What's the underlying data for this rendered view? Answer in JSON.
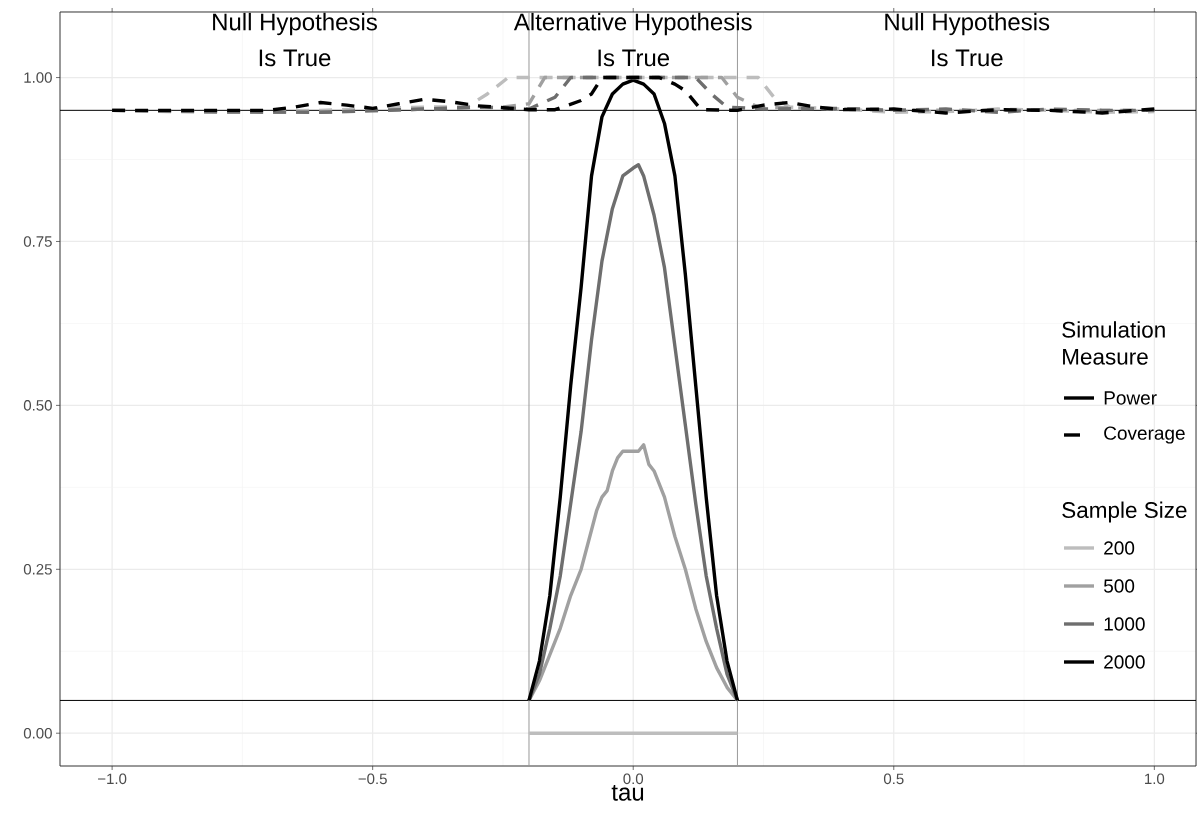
{
  "chart_data": {
    "type": "line",
    "xlabel": "tau",
    "legend_title": "Sample Size",
    "legend": "right",
    "grid": true,
    "xlim": [
      -1.1,
      1.08
    ],
    "ylim": [
      -0.05,
      1.1
    ],
    "xticks": [
      {
        "value": -1.0,
        "label": "−1.0"
      },
      {
        "value": -0.5,
        "label": "−0.5"
      },
      {
        "value": 0.0,
        "label": "0.0"
      },
      {
        "value": 0.5,
        "label": "0.5"
      },
      {
        "value": 1.0,
        "label": "1.0"
      }
    ],
    "yticks": [
      {
        "value": 0.0,
        "label": "0.00"
      },
      {
        "value": 0.25,
        "label": "0.25"
      },
      {
        "value": 0.5,
        "label": "0.50"
      },
      {
        "value": 0.75,
        "label": "0.75"
      },
      {
        "value": 1.0,
        "label": "1.00"
      }
    ],
    "ref_lines": [
      {
        "axis": "y",
        "value": 0.95,
        "color": "#000000"
      },
      {
        "axis": "y",
        "value": 0.05,
        "color": "#000000"
      },
      {
        "axis": "x",
        "value": -0.2,
        "color": "#999999"
      },
      {
        "axis": "x",
        "value": 0.2,
        "color": "#999999"
      }
    ],
    "annotations": [
      "Null Hypothesis",
      "Is True",
      "Alternative Hypothesis",
      "Is True",
      "Null Hypothesis",
      "Is True",
      "Simulation Measure",
      "Power",
      "Coverage"
    ],
    "series": [
      {
        "name": "200",
        "line_style": "solid",
        "color": "#bdbdbd",
        "x": [
          -0.2,
          -0.1,
          0,
          0.1,
          0.2
        ],
        "values": [
          0,
          0,
          0,
          0,
          0
        ]
      },
      {
        "name": "500",
        "line_style": "solid",
        "color": "#a0a0a0",
        "x": [
          -0.2,
          -0.18,
          -0.16,
          -0.14,
          -0.12,
          -0.1,
          -0.08,
          -0.07,
          -0.06,
          -0.05,
          -0.04,
          -0.03,
          -0.02,
          0,
          0.01,
          0.02,
          0.03,
          0.04,
          0.06,
          0.08,
          0.1,
          0.12,
          0.14,
          0.16,
          0.18,
          0.2
        ],
        "values": [
          0.05,
          0.08,
          0.12,
          0.16,
          0.21,
          0.25,
          0.31,
          0.34,
          0.36,
          0.37,
          0.4,
          0.42,
          0.43,
          0.43,
          0.43,
          0.44,
          0.41,
          0.4,
          0.36,
          0.3,
          0.25,
          0.19,
          0.14,
          0.1,
          0.07,
          0.05
        ]
      },
      {
        "name": "1000",
        "line_style": "solid",
        "color": "#6e6e6e",
        "x": [
          -0.2,
          -0.18,
          -0.16,
          -0.14,
          -0.12,
          -0.1,
          -0.08,
          -0.06,
          -0.04,
          -0.02,
          0,
          0.01,
          0.02,
          0.04,
          0.06,
          0.08,
          0.1,
          0.12,
          0.14,
          0.16,
          0.18,
          0.2
        ],
        "values": [
          0.05,
          0.09,
          0.16,
          0.24,
          0.35,
          0.46,
          0.6,
          0.72,
          0.8,
          0.85,
          0.862,
          0.867,
          0.85,
          0.79,
          0.71,
          0.59,
          0.47,
          0.35,
          0.24,
          0.16,
          0.09,
          0.05
        ]
      },
      {
        "name": "2000",
        "line_style": "solid",
        "color": "#000000",
        "x": [
          -0.2,
          -0.18,
          -0.16,
          -0.14,
          -0.12,
          -0.1,
          -0.08,
          -0.06,
          -0.04,
          -0.02,
          0,
          0.02,
          0.04,
          0.06,
          0.08,
          0.1,
          0.12,
          0.14,
          0.16,
          0.18,
          0.2
        ],
        "values": [
          0.05,
          0.11,
          0.21,
          0.36,
          0.53,
          0.68,
          0.85,
          0.94,
          0.975,
          0.99,
          0.996,
          0.99,
          0.975,
          0.93,
          0.85,
          0.7,
          0.53,
          0.36,
          0.21,
          0.11,
          0.05
        ]
      },
      {
        "line_style": "dashed",
        "color": "#bdbdbd",
        "x": [
          -1,
          -0.8,
          -0.6,
          -0.4,
          -0.32,
          -0.28,
          -0.24,
          0.24,
          0.27,
          0.3,
          0.4,
          0.5,
          0.6,
          0.7,
          0.8,
          0.9,
          1.0
        ],
        "values": [
          0.95,
          0.948,
          0.95,
          0.955,
          0.955,
          0.975,
          1.0,
          1.0,
          0.97,
          0.955,
          0.952,
          0.947,
          0.948,
          0.952,
          0.95,
          0.947,
          0.948
        ]
      },
      {
        "line_style": "dashed",
        "color": "#a0a0a0",
        "x": [
          -1,
          -0.8,
          -0.6,
          -0.4,
          -0.25,
          -0.2,
          -0.17,
          0.17,
          0.2,
          0.24,
          0.4,
          0.6,
          0.8,
          1.0
        ],
        "values": [
          0.95,
          0.947,
          0.947,
          0.952,
          0.955,
          0.96,
          1.0,
          1.0,
          0.97,
          0.955,
          0.952,
          0.95,
          0.95,
          0.95
        ]
      },
      {
        "line_style": "dashed",
        "color": "#6e6e6e",
        "x": [
          -1,
          -0.8,
          -0.6,
          -0.4,
          -0.3,
          -0.2,
          -0.15,
          -0.12,
          0.12,
          0.15,
          0.18,
          0.25,
          0.4,
          0.5,
          0.6,
          0.7,
          0.8,
          0.9,
          1.0
        ],
        "values": [
          0.95,
          0.948,
          0.947,
          0.952,
          0.955,
          0.952,
          0.97,
          1.0,
          1.0,
          0.975,
          0.955,
          0.952,
          0.953,
          0.95,
          0.952,
          0.947,
          0.952,
          0.95,
          0.95
        ]
      },
      {
        "line_style": "dashed",
        "color": "#000000",
        "x": [
          -1,
          -0.9,
          -0.8,
          -0.7,
          -0.65,
          -0.6,
          -0.55,
          -0.5,
          -0.45,
          -0.4,
          -0.35,
          -0.3,
          -0.25,
          -0.2,
          -0.15,
          -0.1,
          -0.08,
          -0.06,
          0,
          0.05,
          0.08,
          0.1,
          0.13,
          0.2,
          0.25,
          0.3,
          0.35,
          0.4,
          0.5,
          0.6,
          0.7,
          0.8,
          0.9,
          1.0
        ],
        "values": [
          0.95,
          0.95,
          0.95,
          0.95,
          0.955,
          0.962,
          0.958,
          0.953,
          0.96,
          0.967,
          0.963,
          0.957,
          0.954,
          0.951,
          0.951,
          0.965,
          0.975,
          1.0,
          1.0,
          1.0,
          0.99,
          0.98,
          0.951,
          0.95,
          0.958,
          0.962,
          0.955,
          0.951,
          0.952,
          0.946,
          0.951,
          0.95,
          0.946,
          0.952
        ]
      }
    ]
  }
}
